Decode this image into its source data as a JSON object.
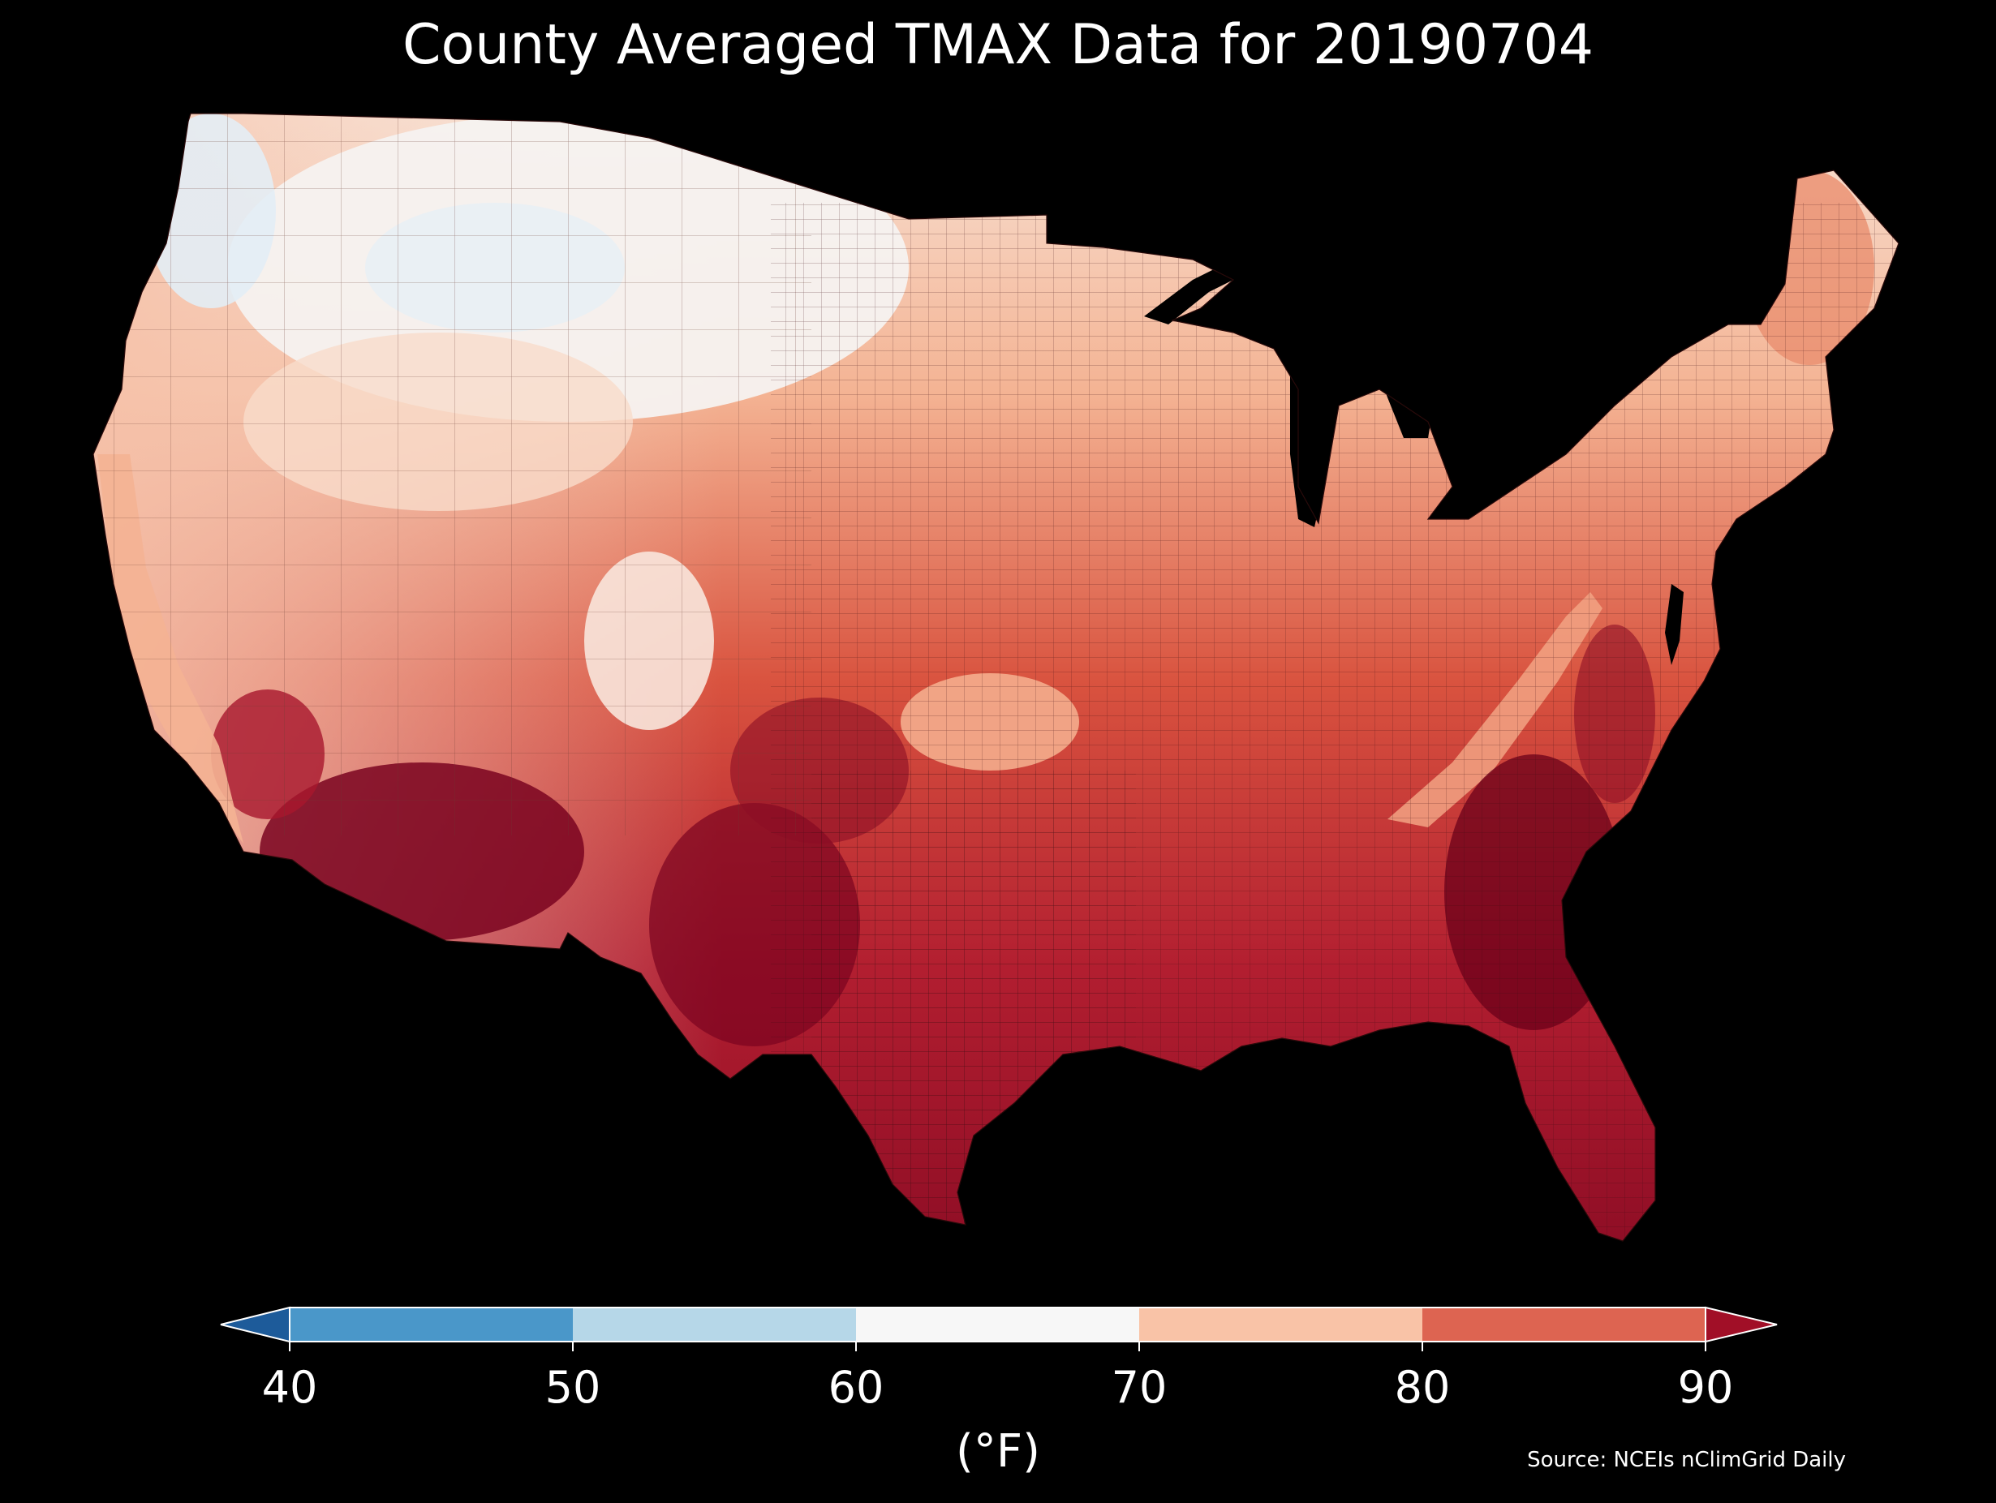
{
  "title": "County Averaged TMAX Data for 20190704",
  "source": "Source: NCEIs nClimGrid Daily",
  "colorbar": {
    "unit_label": "(°F)",
    "ticks": [
      "40",
      "50",
      "60",
      "70",
      "80",
      "90"
    ],
    "bins": [
      {
        "from": 40,
        "to": 50,
        "color": "#4a97c9"
      },
      {
        "from": 50,
        "to": 60,
        "color": "#b6d7e8"
      },
      {
        "from": 60,
        "to": 70,
        "color": "#f7f7f7"
      },
      {
        "from": 70,
        "to": 80,
        "color": "#f9c3a7"
      },
      {
        "from": 80,
        "to": 90,
        "color": "#dd6451"
      }
    ],
    "under_color": "#1d5b9a",
    "over_color": "#a10f27"
  },
  "map": {
    "region": "Contiguous United States",
    "colors": {
      "very_hot": "#6b0019",
      "hot": "#a8162d",
      "warm": "#c73a39",
      "mild_warm": "#e27b60",
      "mild": "#f6b395",
      "cool": "#f8d9c8",
      "neutral": "#f5f2f0",
      "cold": "#deeaf4",
      "water": "#000000"
    }
  }
}
